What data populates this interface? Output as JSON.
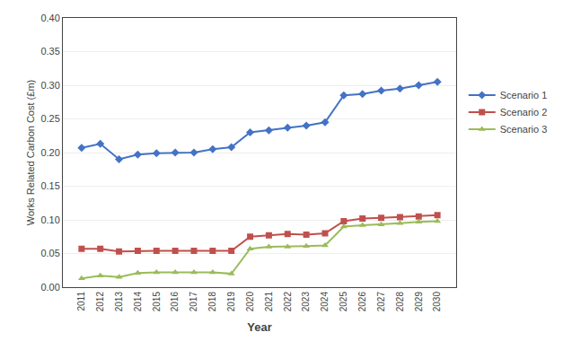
{
  "chart_data": {
    "type": "line",
    "x": [
      2011,
      2012,
      2013,
      2014,
      2015,
      2016,
      2017,
      2018,
      2019,
      2020,
      2021,
      2022,
      2023,
      2024,
      2025,
      2026,
      2027,
      2028,
      2029,
      2030
    ],
    "series": [
      {
        "name": "Scenario 1",
        "color": "#4472C4",
        "marker": "diamond",
        "values": [
          0.207,
          0.213,
          0.19,
          0.197,
          0.199,
          0.2,
          0.2,
          0.205,
          0.208,
          0.23,
          0.233,
          0.237,
          0.24,
          0.245,
          0.285,
          0.287,
          0.292,
          0.295,
          0.3,
          0.305
        ]
      },
      {
        "name": "Scenario 2",
        "color": "#C0504D",
        "marker": "square",
        "values": [
          0.057,
          0.057,
          0.053,
          0.054,
          0.054,
          0.054,
          0.054,
          0.054,
          0.054,
          0.075,
          0.077,
          0.079,
          0.078,
          0.08,
          0.098,
          0.102,
          0.103,
          0.104,
          0.105,
          0.107
        ]
      },
      {
        "name": "Scenario 3",
        "color": "#9BBB59",
        "marker": "triangle-up",
        "values": [
          0.013,
          0.017,
          0.015,
          0.021,
          0.022,
          0.022,
          0.022,
          0.022,
          0.02,
          0.057,
          0.06,
          0.06,
          0.061,
          0.062,
          0.09,
          0.092,
          0.093,
          0.095,
          0.097,
          0.098
        ]
      }
    ],
    "xlabel": "Year",
    "ylabel": "Works Related Carbon Cost (£m)",
    "xlim": [
      2010,
      2031
    ],
    "xticks": [
      2011,
      2012,
      2013,
      2014,
      2015,
      2016,
      2017,
      2018,
      2019,
      2020,
      2021,
      2022,
      2023,
      2024,
      2025,
      2026,
      2027,
      2028,
      2029,
      2030
    ],
    "ylim": [
      0.0,
      0.4
    ],
    "yticks": [
      {
        "value": 0.0,
        "label": "0.00"
      },
      {
        "value": 0.05,
        "label": "0.05"
      },
      {
        "value": 0.1,
        "label": "0.10"
      },
      {
        "value": 0.15,
        "label": "0.15"
      },
      {
        "value": 0.2,
        "label": "0.20"
      },
      {
        "value": 0.25,
        "label": "0.25"
      },
      {
        "value": 0.3,
        "label": "0.30"
      },
      {
        "value": 0.35,
        "label": "0.35"
      },
      {
        "value": 0.4,
        "label": "0.40"
      }
    ],
    "grid": true,
    "legend": "right"
  }
}
